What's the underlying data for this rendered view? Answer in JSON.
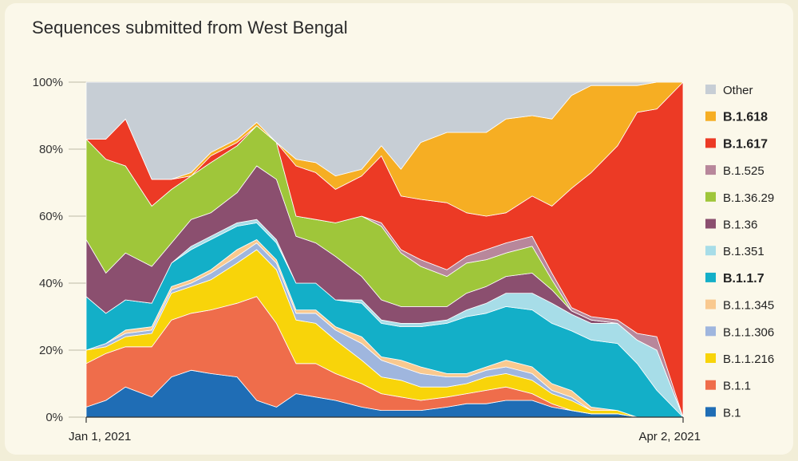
{
  "title": "Sequences submitted from West Bengal",
  "chart_data": {
    "type": "area",
    "stacked": true,
    "normalized": true,
    "y_ticks": [
      "0%",
      "20%",
      "40%",
      "60%",
      "80%",
      "100%"
    ],
    "ylim": [
      0,
      100
    ],
    "x_tick_labels": [
      "Jan 1, 2021",
      "Apr 2, 2021"
    ],
    "x_range": [
      "2021-01-01",
      "2021-04-02"
    ],
    "legend_position": "right",
    "x": [
      "2021-01-01",
      "2021-01-04",
      "2021-01-07",
      "2021-01-11",
      "2021-01-14",
      "2021-01-17",
      "2021-01-20",
      "2021-01-24",
      "2021-01-27",
      "2021-01-30",
      "2021-02-02",
      "2021-02-05",
      "2021-02-08",
      "2021-02-12",
      "2021-02-15",
      "2021-02-18",
      "2021-02-21",
      "2021-02-25",
      "2021-02-28",
      "2021-03-03",
      "2021-03-06",
      "2021-03-10",
      "2021-03-13",
      "2021-03-16",
      "2021-03-19",
      "2021-03-23",
      "2021-03-26",
      "2021-03-29",
      "2021-04-02"
    ],
    "series": [
      {
        "name": "B.1",
        "color": "#1f6db5",
        "values": [
          3,
          5,
          9,
          6,
          12,
          14,
          13,
          12,
          5,
          3,
          7,
          6,
          5,
          3,
          2,
          2,
          2,
          3,
          4,
          4,
          5,
          5,
          3,
          2,
          1,
          1,
          0,
          0,
          0
        ]
      },
      {
        "name": "B.1.1",
        "color": "#ef6d4b",
        "values": [
          13,
          14,
          12,
          15,
          17,
          17,
          19,
          22,
          31,
          25,
          9,
          10,
          8,
          7,
          5,
          4,
          3,
          3,
          3,
          4,
          4,
          2,
          1,
          0,
          0,
          0,
          0,
          0,
          0
        ]
      },
      {
        "name": "B.1.1.216",
        "color": "#f8d40a",
        "values": [
          4,
          2,
          3,
          4,
          8,
          8,
          9,
          12,
          14,
          16,
          13,
          12,
          10,
          7,
          5,
          5,
          4,
          3,
          3,
          4,
          4,
          4,
          3,
          3,
          1,
          1,
          0,
          0,
          0
        ]
      },
      {
        "name": "B.1.1.306",
        "color": "#9fb6de",
        "values": [
          0,
          1,
          1,
          1,
          1,
          1,
          2,
          2,
          2,
          2,
          2,
          3,
          3,
          5,
          5,
          4,
          4,
          3,
          2,
          2,
          2,
          2,
          1,
          1,
          0,
          0,
          0,
          0,
          0
        ]
      },
      {
        "name": "B.1.1.345",
        "color": "#f9c98f",
        "values": [
          0,
          0,
          1,
          1,
          1,
          1,
          1,
          2,
          1,
          1,
          1,
          1,
          1,
          2,
          1,
          2,
          2,
          1,
          1,
          1,
          2,
          2,
          2,
          2,
          1,
          0,
          0,
          0,
          0
        ]
      },
      {
        "name": "B.1.1.7",
        "color": "#13afc8",
        "values": [
          16,
          9,
          9,
          7,
          7,
          9,
          9,
          7,
          5,
          5,
          8,
          8,
          8,
          10,
          10,
          10,
          12,
          15,
          17,
          16,
          16,
          17,
          18,
          18,
          20,
          20,
          16,
          8,
          0
        ]
      },
      {
        "name": "B.1.351",
        "color": "#a7dde8",
        "values": [
          0,
          0,
          0,
          0,
          0,
          1,
          1,
          1,
          1,
          1,
          0,
          0,
          0,
          1,
          1,
          1,
          1,
          1,
          2,
          3,
          4,
          5,
          6,
          5,
          5,
          6,
          7,
          12,
          0
        ]
      },
      {
        "name": "B.1.36",
        "color": "#8b4f6f",
        "values": [
          17,
          12,
          14,
          11,
          6,
          8,
          7,
          9,
          16,
          18,
          14,
          12,
          13,
          7,
          6,
          5,
          5,
          4,
          5,
          5,
          5,
          6,
          4,
          1,
          1,
          0,
          0,
          0,
          0
        ]
      },
      {
        "name": "B.1.36.29",
        "color": "#9fc63a",
        "values": [
          30,
          34,
          26,
          18,
          16,
          13,
          15,
          14,
          12,
          11,
          6,
          7,
          10,
          18,
          22,
          16,
          12,
          9,
          9,
          8,
          7,
          8,
          3,
          0,
          0,
          0,
          0,
          0,
          0
        ]
      },
      {
        "name": "B.1.525",
        "color": "#b8879b",
        "values": [
          0,
          0,
          0,
          0,
          0,
          0,
          0,
          0,
          0,
          0,
          0,
          0,
          0,
          0,
          1,
          1,
          2,
          2,
          2,
          3,
          3,
          3,
          2,
          1,
          1,
          1,
          2,
          4,
          0
        ]
      },
      {
        "name": "B.1.617",
        "color": "#ec3a25",
        "values": [
          0,
          6,
          14,
          8,
          3,
          0,
          2,
          1,
          0,
          0,
          15,
          14,
          10,
          12,
          20,
          16,
          18,
          20,
          13,
          10,
          9,
          12,
          20,
          36,
          43,
          52,
          66,
          68,
          100
        ]
      },
      {
        "name": "B.1.618",
        "color": "#f6ae23",
        "values": [
          0,
          0,
          0,
          0,
          0,
          1,
          1,
          1,
          1,
          0,
          2,
          3,
          4,
          2,
          3,
          8,
          17,
          21,
          24,
          25,
          28,
          24,
          26,
          28,
          26,
          18,
          8,
          8,
          0
        ]
      },
      {
        "name": "Other",
        "color": "#c7ced5",
        "values": [
          17,
          17,
          11,
          29,
          29,
          27,
          21,
          17,
          12,
          18,
          23,
          24,
          28,
          26,
          19,
          26,
          18,
          15,
          15,
          15,
          11,
          10,
          11,
          4,
          1,
          1,
          1,
          0,
          0
        ]
      }
    ],
    "legend": [
      {
        "label": "Other",
        "color": "#c7ced5",
        "bold": false
      },
      {
        "label": "B.1.618",
        "color": "#f6ae23",
        "bold": true
      },
      {
        "label": "B.1.617",
        "color": "#ec3a25",
        "bold": true
      },
      {
        "label": "B.1.525",
        "color": "#b8879b",
        "bold": false
      },
      {
        "label": "B.1.36.29",
        "color": "#9fc63a",
        "bold": false
      },
      {
        "label": "B.1.36",
        "color": "#8b4f6f",
        "bold": false
      },
      {
        "label": "B.1.351",
        "color": "#a7dde8",
        "bold": false
      },
      {
        "label": "B.1.1.7",
        "color": "#13afc8",
        "bold": true
      },
      {
        "label": "B.1.1.345",
        "color": "#f9c98f",
        "bold": false
      },
      {
        "label": "B.1.1.306",
        "color": "#9fb6de",
        "bold": false
      },
      {
        "label": "B.1.1.216",
        "color": "#f8d40a",
        "bold": false
      },
      {
        "label": "B.1.1",
        "color": "#ef6d4b",
        "bold": false
      },
      {
        "label": "B.1",
        "color": "#1f6db5",
        "bold": false
      }
    ]
  }
}
